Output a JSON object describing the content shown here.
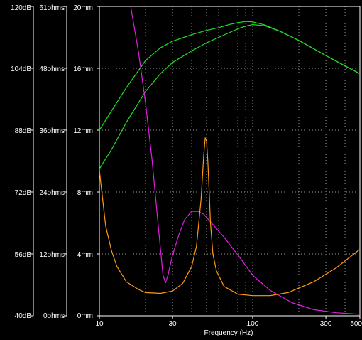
{
  "chart_data": {
    "type": "line",
    "xlabel": "Frequency (Hz)",
    "x_scale": "log",
    "xlim": [
      10,
      500
    ],
    "x_ticks": [
      "10",
      "30",
      "100",
      "300",
      "500"
    ],
    "axes": [
      {
        "unit": "dB",
        "range": [
          40,
          120
        ],
        "ticks": [
          "120dB",
          "104dB",
          "88dB",
          "72dB",
          "56dB",
          "40dB"
        ]
      },
      {
        "unit": "ohms",
        "range": [
          0,
          61
        ],
        "ticks": [
          "61ohms",
          "48ohms",
          "36ohms",
          "24ohms",
          "12ohms",
          "0ohms"
        ]
      },
      {
        "unit": "mm",
        "range": [
          0,
          20
        ],
        "ticks": [
          "20mm",
          "16mm",
          "12mm",
          "8mm",
          "4mm",
          "0mm"
        ]
      }
    ],
    "grid": true,
    "colors": {
      "green": "#20e020",
      "magenta": "#e020e0",
      "orange": "#ff9a10",
      "background": "#000000",
      "frame": "#ffffff"
    },
    "series": [
      {
        "color": "#20e020",
        "axis": "dB",
        "x": [
          10,
          12,
          15,
          20,
          25,
          30,
          40,
          50,
          60,
          70,
          80,
          90,
          100,
          120,
          150,
          200,
          300,
          400,
          500
        ],
        "y": [
          88,
          93,
          99,
          106,
          109.3,
          111,
          112.7,
          113.8,
          114.5,
          115.3,
          115.8,
          116.1,
          116.0,
          115.2,
          113.6,
          111.2,
          107.3,
          104.6,
          102.6
        ]
      },
      {
        "color": "#20e020",
        "axis": "dB",
        "x": [
          10,
          12,
          15,
          20,
          25,
          30,
          40,
          50,
          60,
          70,
          80,
          90,
          100,
          120,
          150,
          200,
          300,
          400,
          500
        ],
        "y": [
          78,
          83,
          90,
          98,
          102.6,
          105.5,
          108.5,
          110.6,
          112.0,
          113.2,
          114.2,
          114.9,
          115.3,
          115.0,
          113.6,
          111.2,
          107.3,
          104.6,
          102.6
        ]
      },
      {
        "color": "#e020e0",
        "axis": "ohms",
        "x": [
          16,
          18,
          20,
          22,
          24,
          26,
          27,
          28,
          30,
          33,
          36,
          40,
          44,
          48,
          55,
          65,
          80,
          100,
          130,
          180,
          250,
          350,
          500
        ],
        "y": [
          61,
          52,
          42,
          31,
          19,
          8,
          6.5,
          8,
          12,
          16,
          19,
          20.6,
          20.6,
          20,
          18,
          15.5,
          12,
          8,
          5,
          2.6,
          1.2,
          0.6,
          0.3
        ]
      },
      {
        "color": "#ff9a10",
        "axis": "mm",
        "x": [
          10,
          11,
          12,
          13,
          15,
          18,
          20,
          25,
          30,
          35,
          40,
          43,
          46,
          48,
          49,
          50,
          51,
          52,
          53,
          55,
          58,
          65,
          80,
          100,
          130,
          170,
          250,
          350,
          500
        ],
        "y": [
          9.4,
          5.8,
          4.2,
          3.2,
          2.2,
          1.7,
          1.5,
          1.45,
          1.6,
          2.1,
          3.2,
          4.5,
          7.5,
          10.5,
          11.5,
          11.3,
          10,
          8,
          6,
          4,
          2.9,
          1.9,
          1.4,
          1.3,
          1.3,
          1.5,
          2.2,
          3.1,
          4.3
        ]
      }
    ]
  }
}
